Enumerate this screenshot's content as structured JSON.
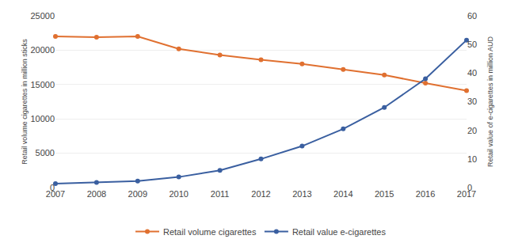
{
  "chart_data": {
    "type": "line",
    "x": [
      2007,
      2008,
      2009,
      2010,
      2011,
      2012,
      2013,
      2014,
      2015,
      2016,
      2017
    ],
    "xlim": [
      2007,
      2017
    ],
    "xticks": [
      2007,
      2008,
      2009,
      2010,
      2011,
      2012,
      2013,
      2014,
      2015,
      2016,
      2017
    ],
    "ylabel": "Retail volume cigarettes in million sticks",
    "y2label": "Retail value of e-cigarettes in million AUD",
    "ylim": [
      0,
      25000
    ],
    "yticks": [
      0,
      5000,
      10000,
      15000,
      20000,
      25000
    ],
    "y2lim": [
      0,
      60
    ],
    "y2ticks": [
      0,
      10,
      20,
      30,
      40,
      50,
      60
    ],
    "grid": true,
    "legend": "bottom",
    "series": [
      {
        "name": "Retail volume cigarettes",
        "color": "#E07030",
        "marker": "circle",
        "values": [
          22000,
          21900,
          22000,
          20200,
          19300,
          18600,
          18000,
          17200,
          16400,
          15200,
          14100
        ]
      },
      {
        "name": "Retail value e-cigarettes",
        "color": "#3A5FA0",
        "marker": "circle",
        "axis": "y2",
        "values": [
          1.4,
          1.8,
          2.3,
          3.7,
          6.0,
          10.0,
          14.5,
          20.5,
          28.0,
          38.0,
          51.5
        ]
      }
    ]
  }
}
